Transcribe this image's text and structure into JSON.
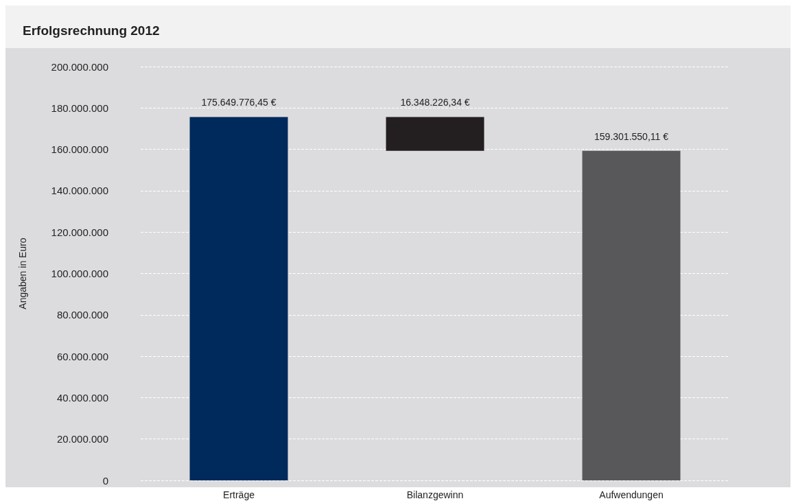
{
  "chart_data": {
    "type": "bar",
    "title": "Erfolgsrechnung 2012",
    "ylabel": "Angaben in Euro",
    "categories": [
      "Erträge",
      "Bilanzgewinn",
      "Aufwendungen"
    ],
    "values": [
      175649776.45,
      16348226.34,
      159301550.11
    ],
    "base": [
      0,
      159301550.11,
      0
    ],
    "colors": [
      "#002a5c",
      "#231f20",
      "#58585a"
    ],
    "value_labels": [
      "175.649.776,45 €",
      "16.348.226,34 €",
      "159.301.550,11 €"
    ],
    "ylim": [
      0,
      200000000
    ],
    "yticks": [
      0,
      {
        "value": 20000000,
        "label": "20.000.000"
      },
      {
        "value": 40000000,
        "label": "40.000.000"
      },
      {
        "value": 60000000,
        "label": "60.000.000"
      },
      {
        "value": 80000000,
        "label": "80.000.000"
      },
      {
        "value": 100000000,
        "label": "100.000.000"
      },
      {
        "value": 120000000,
        "label": "120.000.000"
      },
      {
        "value": 140000000,
        "label": "140.000.000"
      },
      {
        "value": 160000000,
        "label": "160.000.000"
      },
      {
        "value": 180000000,
        "label": "180.000.000"
      },
      {
        "value": 200000000,
        "label": "200.000.000"
      }
    ],
    "grid": "y"
  }
}
